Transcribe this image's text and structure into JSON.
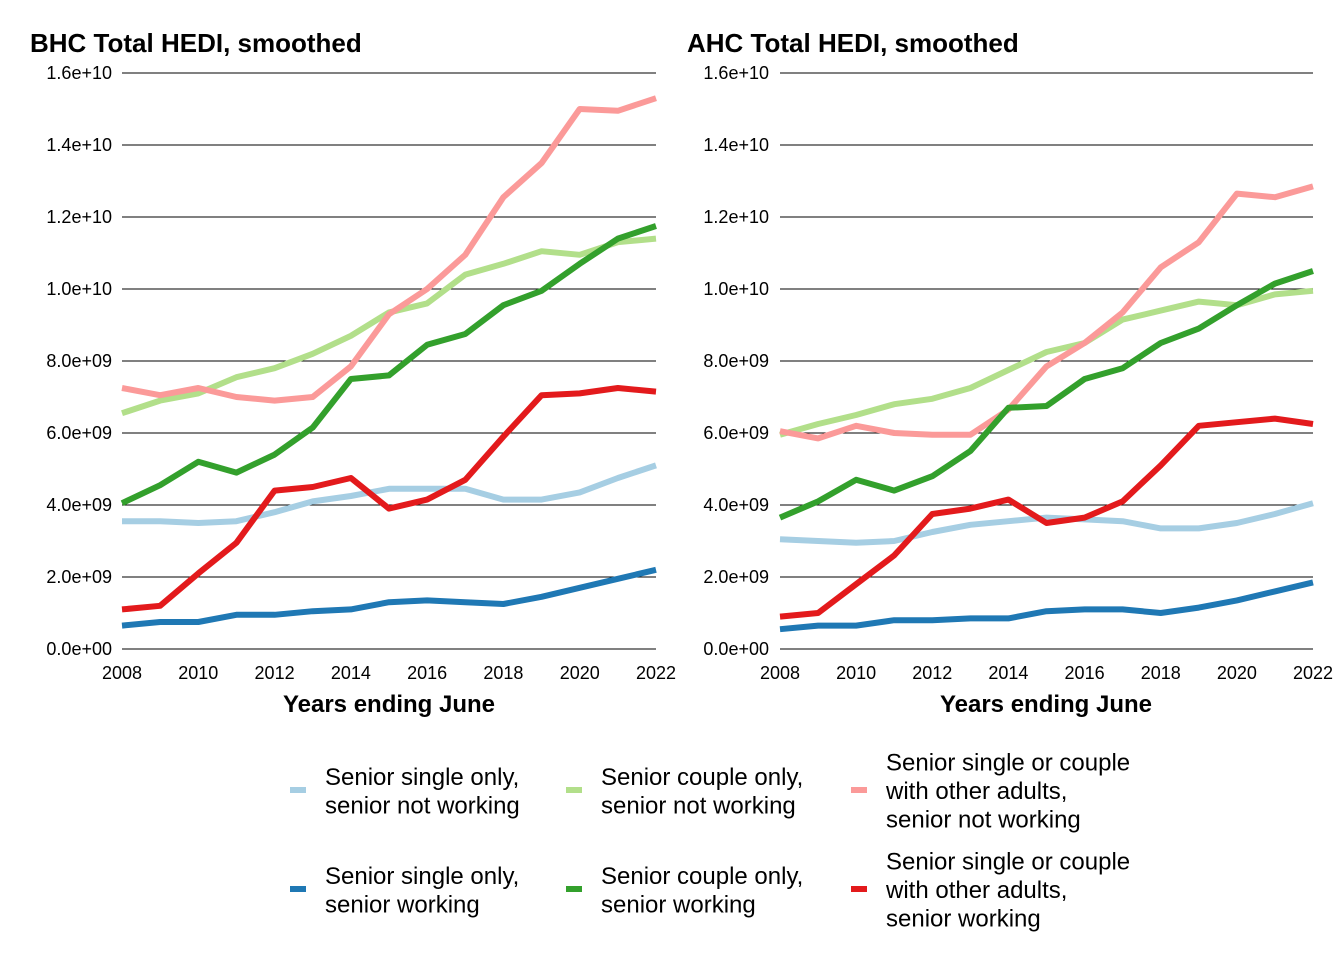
{
  "chart_data": [
    {
      "type": "line",
      "title": "BHC Total HEDI, smoothed",
      "xlabel": "Years ending June",
      "ylabel": "",
      "xlim": [
        2008,
        2022
      ],
      "ylim": [
        0,
        16000000000
      ],
      "grid": "horizontal",
      "x": [
        2008,
        2009,
        2010,
        2011,
        2012,
        2013,
        2014,
        2015,
        2016,
        2017,
        2018,
        2019,
        2020,
        2021,
        2022
      ],
      "xticks": [
        "2008",
        "2010",
        "2012",
        "2014",
        "2016",
        "2018",
        "2020",
        "2022"
      ],
      "yticks": [
        "0.0e+00",
        "2.0e+09",
        "4.0e+09",
        "6.0e+09",
        "8.0e+09",
        "1.0e+10",
        "1.2e+10",
        "1.4e+10",
        "1.6e+10"
      ],
      "series": [
        {
          "name": "Senior single only, senior not working",
          "color": "#a6cee3",
          "values": [
            3550000000,
            3550000000,
            3500000000,
            3550000000,
            3800000000,
            4100000000,
            4250000000,
            4450000000,
            4450000000,
            4450000000,
            4150000000,
            4150000000,
            4350000000,
            4750000000,
            5100000000
          ]
        },
        {
          "name": "Senior couple only, senior not working",
          "color": "#b2df8a",
          "values": [
            6550000000,
            6900000000,
            7100000000,
            7550000000,
            7800000000,
            8200000000,
            8700000000,
            9350000000,
            9600000000,
            10400000000,
            10700000000,
            11050000000,
            10950000000,
            11300000000,
            11400000000
          ]
        },
        {
          "name": "Senior single or couple with other adults, senior not working",
          "color": "#fb9a99",
          "values": [
            7250000000,
            7050000000,
            7250000000,
            7000000000,
            6900000000,
            7000000000,
            7850000000,
            9300000000,
            10000000000,
            10950000000,
            12550000000,
            13500000000,
            15000000000,
            14950000000,
            15300000000
          ]
        },
        {
          "name": "Senior single only, senior working",
          "color": "#1f78b4",
          "values": [
            650000000,
            750000000,
            750000000,
            950000000,
            950000000,
            1050000000,
            1100000000,
            1300000000,
            1350000000,
            1300000000,
            1250000000,
            1450000000,
            1700000000,
            1950000000,
            2200000000
          ]
        },
        {
          "name": "Senior couple only, senior working",
          "color": "#33a02c",
          "values": [
            4050000000,
            4550000000,
            5200000000,
            4900000000,
            5400000000,
            6150000000,
            7500000000,
            7600000000,
            8450000000,
            8750000000,
            9550000000,
            9950000000,
            10700000000,
            11400000000,
            11750000000
          ]
        },
        {
          "name": "Senior single or couple with other adults, senior working",
          "color": "#e31a1c",
          "values": [
            1100000000,
            1200000000,
            2100000000,
            2950000000,
            4400000000,
            4500000000,
            4750000000,
            3900000000,
            4150000000,
            4700000000,
            5900000000,
            7050000000,
            7100000000,
            7250000000,
            7150000000
          ]
        }
      ]
    },
    {
      "type": "line",
      "title": "AHC Total HEDI, smoothed",
      "xlabel": "Years ending June",
      "ylabel": "",
      "xlim": [
        2008,
        2022
      ],
      "ylim": [
        0,
        16000000000
      ],
      "grid": "horizontal",
      "x": [
        2008,
        2009,
        2010,
        2011,
        2012,
        2013,
        2014,
        2015,
        2016,
        2017,
        2018,
        2019,
        2020,
        2021,
        2022
      ],
      "xticks": [
        "2008",
        "2010",
        "2012",
        "2014",
        "2016",
        "2018",
        "2020",
        "2022"
      ],
      "yticks": [
        "0.0e+00",
        "2.0e+09",
        "4.0e+09",
        "6.0e+09",
        "8.0e+09",
        "1.0e+10",
        "1.2e+10",
        "1.4e+10",
        "1.6e+10"
      ],
      "series": [
        {
          "name": "Senior single only, senior not working",
          "color": "#a6cee3",
          "values": [
            3050000000,
            3000000000,
            2950000000,
            3000000000,
            3250000000,
            3450000000,
            3550000000,
            3650000000,
            3600000000,
            3550000000,
            3350000000,
            3350000000,
            3500000000,
            3750000000,
            4050000000
          ]
        },
        {
          "name": "Senior couple only, senior not working",
          "color": "#b2df8a",
          "values": [
            5950000000,
            6250000000,
            6500000000,
            6800000000,
            6950000000,
            7250000000,
            7750000000,
            8250000000,
            8500000000,
            9150000000,
            9400000000,
            9650000000,
            9550000000,
            9850000000,
            9950000000
          ]
        },
        {
          "name": "Senior single or couple with other adults, senior not working",
          "color": "#fb9a99",
          "values": [
            6050000000,
            5850000000,
            6200000000,
            6000000000,
            5950000000,
            5950000000,
            6650000000,
            7850000000,
            8500000000,
            9350000000,
            10600000000,
            11300000000,
            12650000000,
            12550000000,
            12850000000
          ]
        },
        {
          "name": "Senior single only, senior working",
          "color": "#1f78b4",
          "values": [
            550000000,
            650000000,
            650000000,
            800000000,
            800000000,
            850000000,
            850000000,
            1050000000,
            1100000000,
            1100000000,
            1000000000,
            1150000000,
            1350000000,
            1600000000,
            1850000000
          ]
        },
        {
          "name": "Senior couple only, senior working",
          "color": "#33a02c",
          "values": [
            3650000000,
            4100000000,
            4700000000,
            4400000000,
            4800000000,
            5500000000,
            6700000000,
            6750000000,
            7500000000,
            7800000000,
            8500000000,
            8900000000,
            9550000000,
            10150000000,
            10500000000
          ]
        },
        {
          "name": "Senior single or couple with other adults, senior working",
          "color": "#e31a1c",
          "values": [
            900000000,
            1000000000,
            1800000000,
            2600000000,
            3750000000,
            3900000000,
            4150000000,
            3500000000,
            3650000000,
            4100000000,
            5100000000,
            6200000000,
            6300000000,
            6400000000,
            6250000000
          ]
        }
      ]
    }
  ],
  "legend": {
    "position": "bottom",
    "items": [
      {
        "color": "#a6cee3",
        "lines": [
          "Senior single only,",
          "senior not working"
        ]
      },
      {
        "color": "#b2df8a",
        "lines": [
          "Senior couple only,",
          "senior not working"
        ]
      },
      {
        "color": "#fb9a99",
        "lines": [
          "Senior single or couple",
          "with other adults,",
          "senior not working"
        ]
      },
      {
        "color": "#1f78b4",
        "lines": [
          "Senior single only,",
          "senior working"
        ]
      },
      {
        "color": "#33a02c",
        "lines": [
          "Senior couple only,",
          "senior working"
        ]
      },
      {
        "color": "#e31a1c",
        "lines": [
          "Senior single or couple",
          "with other adults,",
          "senior working"
        ]
      }
    ]
  }
}
